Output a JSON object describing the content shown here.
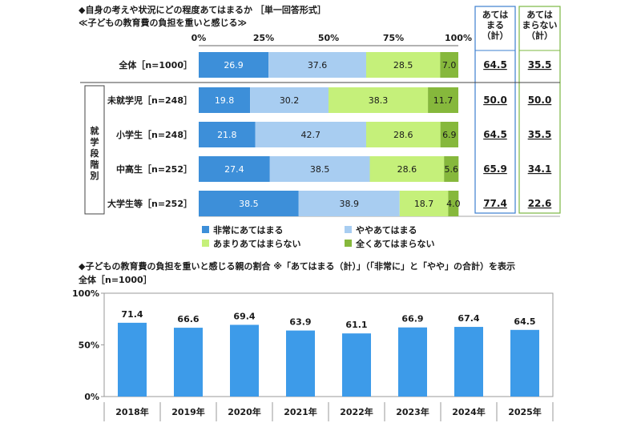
{
  "headings": {
    "q_title": "◆自身の考えや状況にどの程度あてはまるか ［単一回答形式］",
    "q_item": "≪子どもの教育費の負担を重いと感じる≫",
    "trend_title": "◆子どもの教育費の負担を重いと感じる親の割合 ※「あてはまる（計）」（「非常に」と「やや」の合計）を表示",
    "trend_sub": "全体［n=1000］"
  },
  "side_label": "就学段階別",
  "summary_headers": {
    "agree": [
      "あては",
      "まる",
      "（計）"
    ],
    "disagree": [
      "あては",
      "まらない",
      "（計）"
    ]
  },
  "colors": {
    "very": "#3d8fd9",
    "somewhat": "#a8cdf1",
    "not_really": "#c5f07a",
    "not_at_all": "#86b83c",
    "agree_box": "#3d7fcf",
    "disagree_box": "#7cb842",
    "trend_bar": "#3d9be9"
  },
  "chart_data": [
    {
      "type": "bar",
      "orientation": "horizontal",
      "stacked": true,
      "xlim": [
        0,
        100
      ],
      "x_ticks": [
        "0%",
        "25%",
        "50%",
        "75%",
        "100%"
      ],
      "categories": [
        "全体［n=1000］",
        "未就学児［n=248］",
        "小学生［n=248］",
        "中高生［n=252］",
        "大学生等［n=252］"
      ],
      "series": [
        {
          "name": "非常にあてはまる",
          "values": [
            26.9,
            19.8,
            21.8,
            27.4,
            38.5
          ]
        },
        {
          "name": "ややあてはまる",
          "values": [
            37.6,
            30.2,
            42.7,
            38.5,
            38.9
          ]
        },
        {
          "name": "あまりあてはまらない",
          "values": [
            28.5,
            38.3,
            28.6,
            28.6,
            18.7
          ]
        },
        {
          "name": "全くあてはまらない",
          "values": [
            7.0,
            11.7,
            6.9,
            5.6,
            4.0
          ]
        }
      ],
      "agree_total": [
        "64.5",
        "50.0",
        "64.5",
        "65.9",
        "77.4"
      ],
      "disagree_total": [
        "35.5",
        "50.0",
        "35.5",
        "34.1",
        "22.6"
      ],
      "legend_position": "bottom"
    },
    {
      "type": "bar",
      "categories": [
        "2018年",
        "2019年",
        "2020年",
        "2021年",
        "2022年",
        "2023年",
        "2024年",
        "2025年"
      ],
      "values": [
        71.4,
        66.6,
        69.4,
        63.9,
        61.1,
        66.9,
        67.4,
        64.5
      ],
      "ylim": [
        0,
        100
      ],
      "y_ticks": [
        "0%",
        "50%",
        "100%"
      ]
    }
  ]
}
